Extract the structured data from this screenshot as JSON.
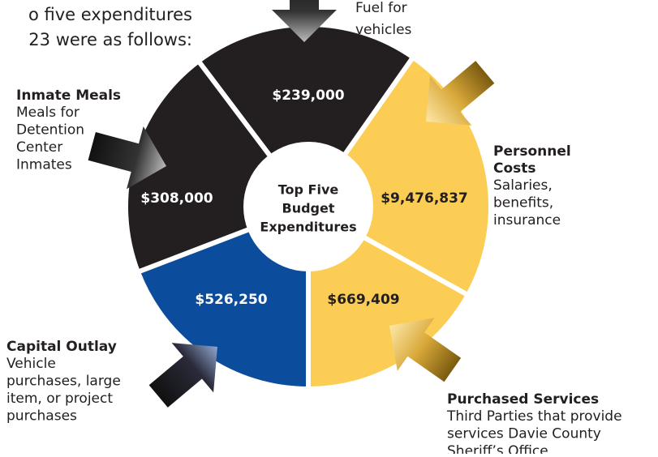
{
  "intro": [
    "o five expenditures",
    "23 were as follows:"
  ],
  "center": [
    "Top Five",
    "Budget",
    "Expenditures"
  ],
  "segments": [
    {
      "value": "$239,000",
      "description": [
        "Fuel for",
        "vehicles"
      ]
    },
    {
      "value": "$9,476,837",
      "title": [
        "Personnel",
        "Costs"
      ],
      "description": [
        "Salaries,",
        "benefits,",
        "insurance"
      ]
    },
    {
      "value": "$669,409",
      "title": [
        "Purchased Services"
      ],
      "description": [
        "Third Parties that provide",
        "services Davie County",
        "Sheriff’s Office"
      ]
    },
    {
      "value": "$526,250",
      "title": [
        "Capital Outlay"
      ],
      "description": [
        "Vehicle",
        "purchases, large",
        "item, or project",
        "purchases"
      ]
    },
    {
      "value": "$308,000",
      "title": [
        "Inmate Meals"
      ],
      "description": [
        "Meals for",
        "Detention",
        "Center",
        "Inmates"
      ]
    }
  ]
}
